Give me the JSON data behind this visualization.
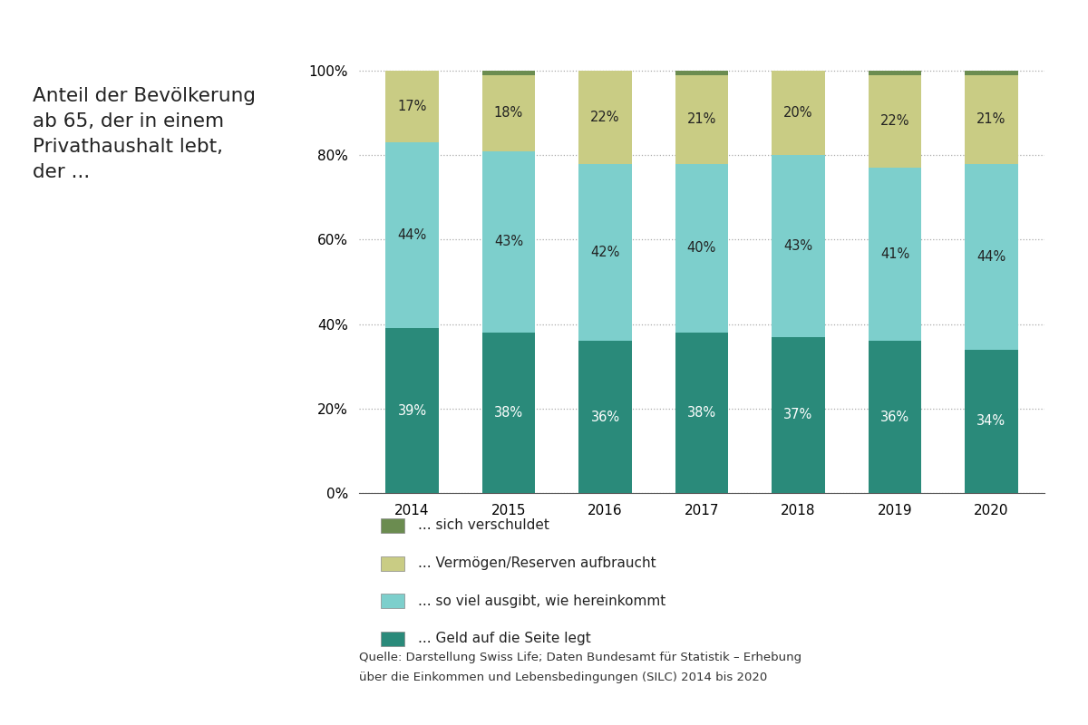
{
  "years": [
    "2014",
    "2015",
    "2016",
    "2017",
    "2018",
    "2019",
    "2020"
  ],
  "seg1": [
    39,
    38,
    36,
    38,
    37,
    36,
    34
  ],
  "seg2": [
    44,
    43,
    42,
    40,
    43,
    41,
    44
  ],
  "seg3": [
    17,
    18,
    22,
    21,
    20,
    22,
    21
  ],
  "seg4": [
    0,
    1,
    0,
    1,
    0,
    1,
    1
  ],
  "color1": "#2a8a7a",
  "color2": "#7dcfcc",
  "color3": "#c9cc84",
  "color4": "#6b8c50",
  "label1": "... Geld auf die Seite legt",
  "label2": "... so viel ausgibt, wie hereinkommt",
  "label3": "... Vermögen/Reserven aufbraucht",
  "label4": "... sich verschuldet",
  "title_lines": [
    "Anteil der Bevölkerung",
    "ab 65, der in einem",
    "Privathaushalt lebt,",
    "der ..."
  ],
  "source_line1": "Quelle: Darstellung Swiss Life; Daten Bundesamt für Statistik – Erhebung",
  "source_line2": "über die Einkommen und Lebensbedingungen (SILC) 2014 bis 2020",
  "yticks": [
    0,
    20,
    40,
    60,
    80,
    100
  ],
  "ytick_labels": [
    "0%",
    "20%",
    "40%",
    "60%",
    "80%",
    "100%"
  ],
  "bar_width": 0.55,
  "background_color": "#ffffff",
  "label_color_dark": "#222222",
  "label_color_light": "#ffffff",
  "grid_color": "#aaaaaa",
  "axis_color": "#555555"
}
